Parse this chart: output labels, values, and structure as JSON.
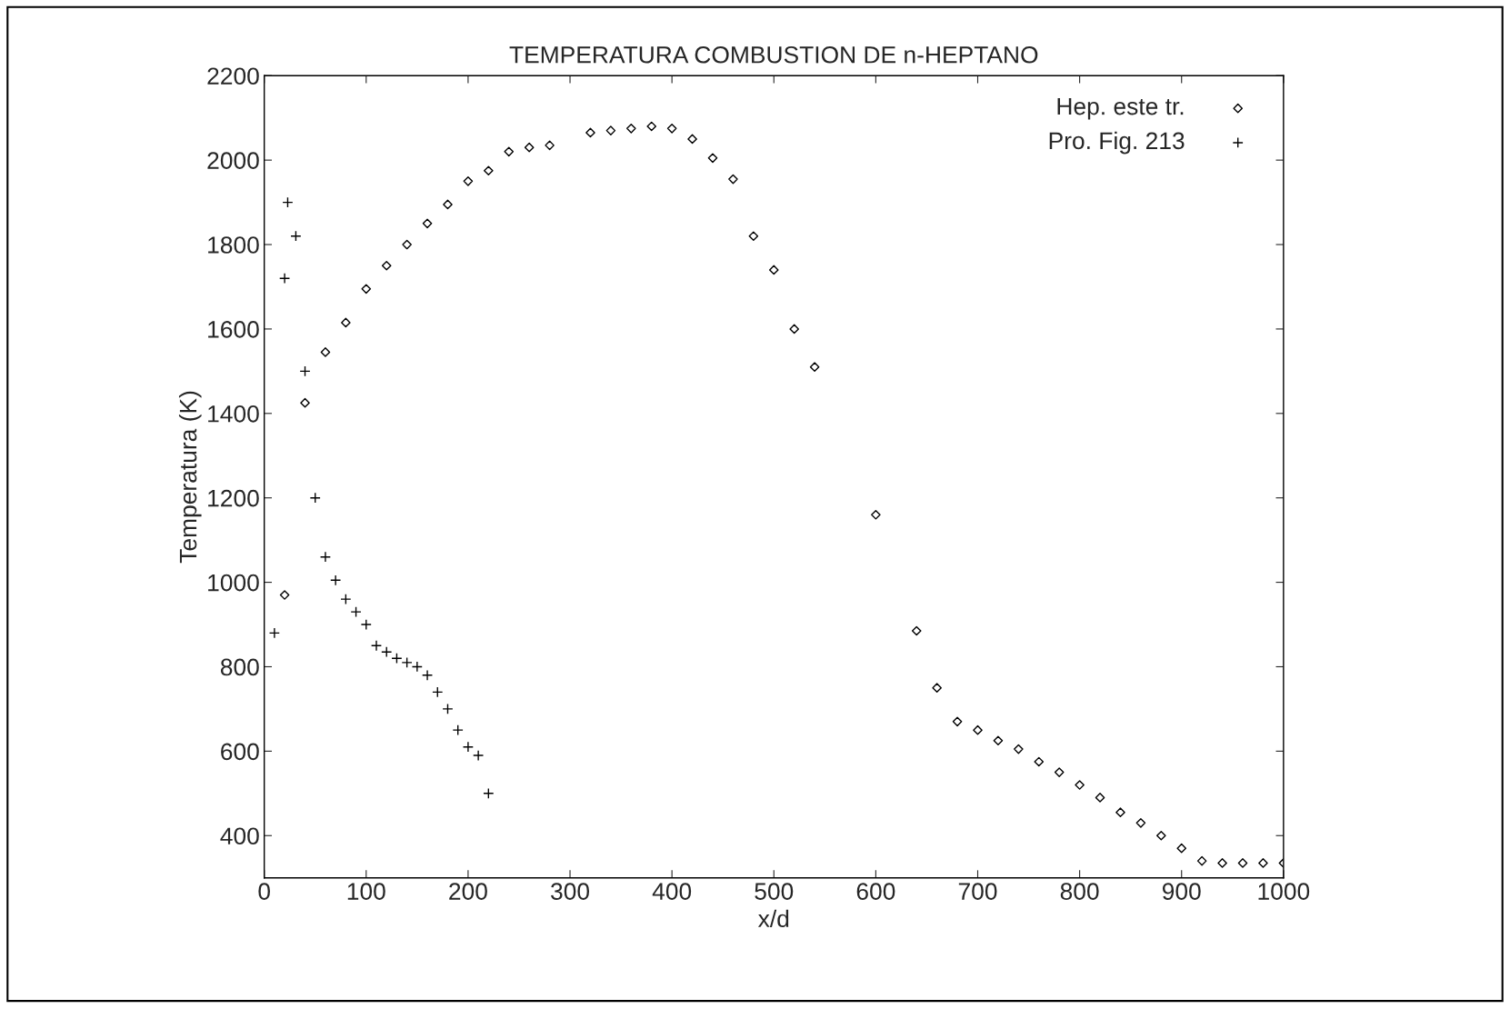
{
  "chart_data": {
    "type": "scatter",
    "title": "TEMPERATURA COMBUSTION DE n-HEPTANO",
    "xlabel": "x/d",
    "ylabel": "Temperatura (K)",
    "xlim": [
      0,
      1000
    ],
    "xticks": [
      0,
      100,
      200,
      300,
      400,
      500,
      600,
      700,
      800,
      900,
      1000
    ],
    "ylim": [
      300,
      2200
    ],
    "yticks": [
      400,
      600,
      800,
      1000,
      1200,
      1400,
      1600,
      1800,
      2000,
      2200
    ],
    "grid": false,
    "legend": "top right",
    "series": [
      {
        "name": "Hep. este tr.",
        "color": "#000000",
        "marker": "diamond",
        "x": [
          20,
          40,
          60,
          80,
          100,
          120,
          140,
          160,
          180,
          200,
          220,
          240,
          260,
          280,
          320,
          340,
          360,
          380,
          400,
          420,
          440,
          460,
          480,
          500,
          520,
          540,
          600,
          640,
          660,
          680,
          700,
          720,
          740,
          760,
          780,
          800,
          820,
          840,
          860,
          880,
          900,
          920,
          940,
          960,
          980,
          1000
        ],
        "values": [
          970,
          1425,
          1545,
          1615,
          1695,
          1750,
          1800,
          1850,
          1895,
          1950,
          1975,
          2020,
          2030,
          2035,
          2065,
          2070,
          2075,
          2080,
          2075,
          2050,
          2005,
          1955,
          1820,
          1740,
          1600,
          1510,
          1160,
          885,
          750,
          670,
          650,
          625,
          605,
          575,
          550,
          520,
          490,
          455,
          430,
          400,
          370,
          340,
          335,
          335,
          335,
          335
        ]
      },
      {
        "name": "Pro. Fig. 213",
        "color": "#000000",
        "marker": "cross",
        "x": [
          10,
          20,
          23,
          31,
          40,
          50,
          60,
          70,
          80,
          90,
          100,
          110,
          120,
          130,
          140,
          150,
          160,
          170,
          180,
          190,
          200,
          210,
          220
        ],
        "values": [
          880,
          1720,
          1900,
          1820,
          1500,
          1200,
          1060,
          1005,
          960,
          930,
          900,
          850,
          835,
          820,
          810,
          800,
          780,
          740,
          700,
          650,
          610,
          590,
          500
        ]
      }
    ]
  }
}
